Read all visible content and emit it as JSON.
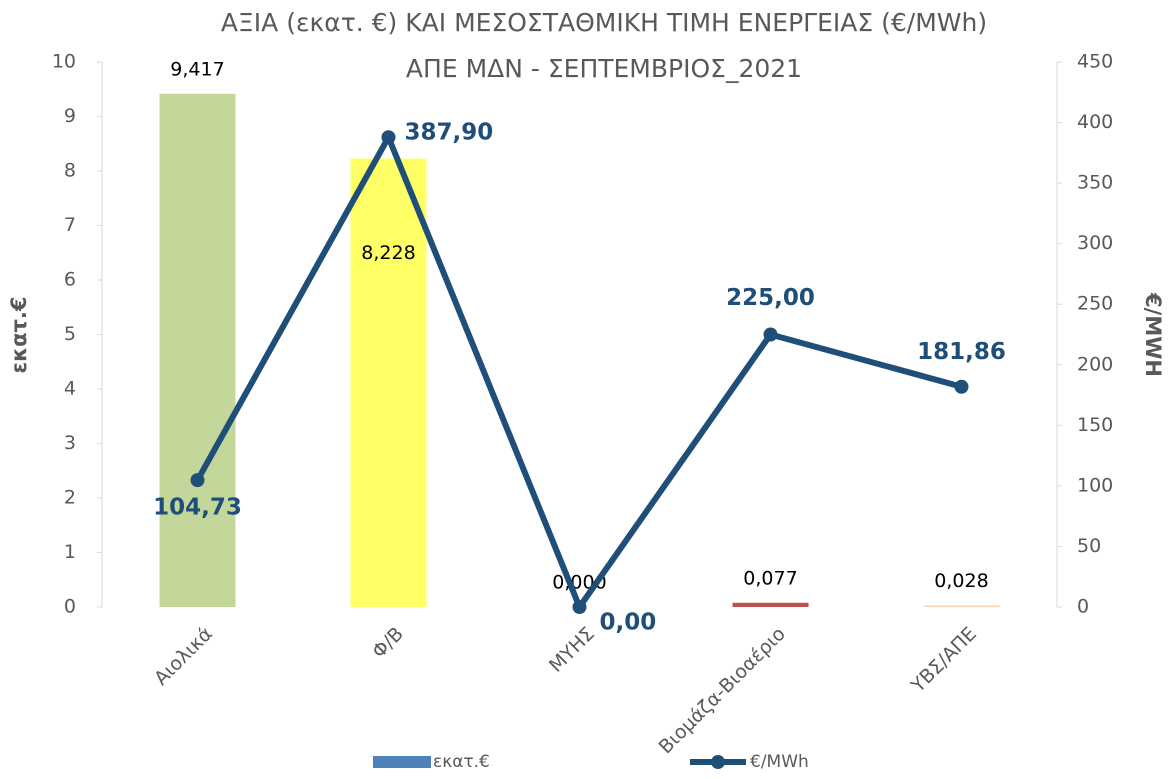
{
  "chart_data": {
    "type": "bar-line",
    "title": [
      "ΑΞΙΑ (εκατ. €) ΚΑΙ ΜΕΣΟΣΤΑΘΜΙΚΗ ΤΙΜΗ ΕΝΕΡΓΕΙΑΣ (€/MWh)",
      "ΑΠΕ ΜΔΝ - ΣΕΠΤΕΜΒΡΙΟΣ_2021"
    ],
    "ylabel": "εκατ.€",
    "y2label": "€/MWH",
    "categories": [
      "Αιολικά",
      "Φ/Β",
      "ΜΥΗΣ",
      "Βιομάζα-Βιοαέριο",
      "ΥΒΣ/ΑΠΕ"
    ],
    "series": [
      {
        "name": "εκατ.€",
        "type": "bar",
        "color": "#4f81bd",
        "colors": [
          "#c4d79b",
          "#ffff66",
          "#4f81bd",
          "#c0504d",
          "#fcd5b4"
        ],
        "values": [
          9.417,
          8.228,
          0,
          0.077,
          0.028
        ],
        "value_labels": [
          "9,417",
          "8,228",
          "0,000",
          "0,077",
          "0,028"
        ]
      },
      {
        "name": "€/MWh",
        "type": "line",
        "axis": "y2",
        "color": "#1f4e79",
        "values": [
          104.73,
          387.9,
          0,
          225.0,
          181.86
        ],
        "value_labels": [
          "104,73",
          "387,90",
          "0,00",
          "225,00",
          "181,86"
        ]
      }
    ],
    "ylim": [
      0,
      10
    ],
    "yticks": [
      0,
      1,
      2,
      3,
      4,
      5,
      6,
      7,
      8,
      9,
      10
    ],
    "y2lim": [
      0,
      450
    ],
    "y2ticks": [
      0,
      50,
      100,
      150,
      200,
      250,
      300,
      350,
      400,
      450
    ],
    "grid": false,
    "legend": "bottom"
  }
}
